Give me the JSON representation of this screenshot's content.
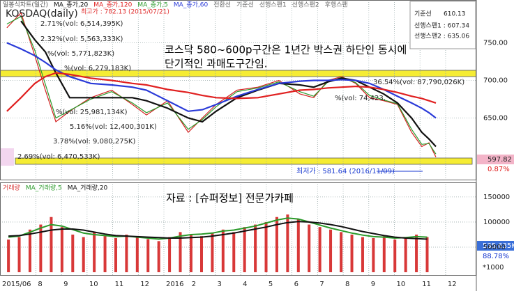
{
  "chart_data": [
    {
      "type": "line",
      "title": "KOSDAQ(daily)",
      "subtitle": "일봉식차트(일간)",
      "xlim": [
        0.6,
        19.2
      ],
      "ylim": [
        568,
        807
      ],
      "yticks": [
        {
          "value": 650,
          "label": "650.00"
        },
        {
          "value": 700,
          "label": "700.00"
        },
        {
          "value": 750,
          "label": "750.00"
        }
      ],
      "grid": true,
      "x": [
        0.87,
        1.42,
        1.96,
        2.37,
        2.78,
        3.32,
        4.14,
        4.96,
        5.77,
        6.32,
        7.14,
        7.95,
        8.5,
        9.04,
        9.86,
        10.67,
        11.49,
        12.31,
        12.85,
        13.4,
        13.94,
        14.49,
        15.03,
        15.58,
        16.12,
        16.67,
        17.07,
        17.35,
        17.62
      ],
      "values": [
        770,
        790,
        733,
        687,
        645,
        659,
        677,
        687,
        668,
        654,
        673,
        631,
        650,
        668,
        687,
        691,
        700,
        682,
        677,
        700,
        705,
        696,
        677,
        673,
        668,
        631,
        612,
        617,
        598
      ],
      "color": "#d42020",
      "series": [
        {
          "name": "MA_종가,20",
          "color": "#111111",
          "values": [
            null,
            779,
            754,
            738,
            710,
            677,
            677,
            677,
            677,
            673,
            663,
            650,
            645,
            659,
            677,
            687,
            696,
            694,
            691,
            698,
            703,
            700,
            691,
            682,
            670,
            650,
            631,
            622,
            612
          ]
        },
        {
          "name": "MA_종가,120",
          "color": "#e02020",
          "values": [
            659,
            677,
            696,
            705,
            710,
            708,
            703,
            700,
            696,
            694,
            688,
            684,
            680,
            677,
            676,
            677,
            682,
            687,
            688,
            690,
            691,
            692,
            691,
            688,
            684,
            679,
            676,
            673,
            670
          ]
        },
        {
          "name": "MA_종가,5",
          "color": "#2a9a2a",
          "values": [
            775,
            785,
            740,
            695,
            650,
            660,
            675,
            685,
            670,
            657,
            670,
            635,
            648,
            665,
            685,
            690,
            698,
            685,
            679,
            698,
            704,
            697,
            680,
            674,
            669,
            635,
            615,
            616,
            602
          ]
        },
        {
          "name": "MA_종가,60",
          "color": "#2a3ad8",
          "values": [
            750,
            742,
            733,
            724,
            714,
            705,
            696,
            694,
            691,
            687,
            673,
            659,
            661,
            668,
            679,
            688,
            696,
            699,
            700,
            700,
            701,
            700,
            696,
            688,
            679,
            670,
            663,
            657,
            650
          ]
        }
      ],
      "indicator_labels": [
        "전환선",
        "기준선",
        "선행스팬1",
        "선행스팬2",
        "후행스팬"
      ],
      "annotations": [
        "최고가 : 782.13 (2015/07/21)",
        "2.71%(vol: 6,514,395K)",
        "2.32%(vol: 5,563,333K)",
        "%(vol: 5,771,823K)",
        "%(vol: 6,279,183K)",
        "%(vol: 25,981,134K)",
        "5.16%(vol: 12,400,301K)",
        "3.78%(vol: 9,080,275K)",
        "2.69%(vol: 6,470,533K)",
        "36.54%(vol: 87,790,026K)",
        "%(vol: 74,423,",
        "최저가 : 581.64 (2016/11/09)",
        "코스닥 580~600p구간은 1년간 박스권 하단인 동시에",
        "단기적인 과매도구간임."
      ],
      "info_box": [
        "기준선",
        "610.13",
        "선행스팬1 : 607.34",
        "선행스팬2 : 635.06"
      ],
      "side_labels": [
        "597.82",
        "0.87%"
      ]
    },
    {
      "type": "bar",
      "xlim": [
        0.6,
        19.2
      ],
      "ylim": [
        -5500,
        179000
      ],
      "yticks": [
        50000,
        100000,
        150000
      ],
      "xticks": [
        {
          "value": 0.6,
          "label": "2015/06"
        },
        {
          "value": 2,
          "label": "8"
        },
        {
          "value": 3,
          "label": "9"
        },
        {
          "value": 4,
          "label": "10"
        },
        {
          "value": 5,
          "label": "11"
        },
        {
          "value": 6,
          "label": "12"
        },
        {
          "value": 7,
          "label": "2016"
        },
        {
          "value": 8,
          "label": "2"
        },
        {
          "value": 9,
          "label": "3"
        },
        {
          "value": 10,
          "label": "4"
        },
        {
          "value": 11,
          "label": "5"
        },
        {
          "value": 12,
          "label": "6"
        },
        {
          "value": 13,
          "label": "7"
        },
        {
          "value": 14,
          "label": "8"
        },
        {
          "value": 15,
          "label": "9"
        },
        {
          "value": 16,
          "label": "10"
        },
        {
          "value": 17,
          "label": "11"
        },
        {
          "value": 18,
          "label": "12"
        }
      ],
      "grid": true,
      "x": [
        0.93,
        1.35,
        1.77,
        2.19,
        2.6,
        3.02,
        3.44,
        3.86,
        4.28,
        4.7,
        5.12,
        5.54,
        5.96,
        6.38,
        6.8,
        7.22,
        7.64,
        8.06,
        8.47,
        8.89,
        9.31,
        9.73,
        10.15,
        10.57,
        10.99,
        11.41,
        11.83,
        12.25,
        12.67,
        13.09,
        13.51,
        13.92,
        14.34,
        14.76,
        15.18,
        15.6,
        16.02,
        16.44,
        16.86,
        17.28
      ],
      "series": [
        {
          "name": "거래량",
          "mark": "bar",
          "color": "#d83838",
          "values": [
            65000,
            70000,
            85000,
            95000,
            110000,
            90000,
            75000,
            70000,
            80000,
            72000,
            68000,
            75000,
            70000,
            66000,
            62000,
            70000,
            80000,
            75000,
            72000,
            78000,
            85000,
            80000,
            90000,
            95000,
            100000,
            110000,
            115000,
            105000,
            95000,
            90000,
            85000,
            80000,
            75000,
            70000,
            68000,
            72000,
            65000,
            70000,
            75000,
            70000
          ]
        },
        {
          "name": "MA_거래량,5",
          "mark": "line",
          "color": "#2a9a2a",
          "values": [
            70000,
            72000,
            80000,
            88000,
            95000,
            92000,
            85000,
            78000,
            75000,
            73000,
            71000,
            72000,
            70000,
            68000,
            66000,
            68000,
            72000,
            75000,
            76000,
            78000,
            82000,
            84000,
            88000,
            92000,
            98000,
            104000,
            108000,
            106000,
            100000,
            94000,
            88000,
            83000,
            78000,
            74000,
            71000,
            70000,
            68000,
            69000,
            71000,
            70000
          ]
        },
        {
          "name": "MA_거래량,20",
          "mark": "line",
          "color": "#111111",
          "values": [
            72000,
            73000,
            76000,
            80000,
            84000,
            86000,
            86000,
            84000,
            80000,
            76000,
            73000,
            72000,
            71000,
            70000,
            69000,
            68000,
            68000,
            69000,
            70000,
            72000,
            75000,
            78000,
            82000,
            86000,
            90000,
            95000,
            99000,
            101000,
            100000,
            98000,
            95000,
            91000,
            86000,
            81000,
            77000,
            73000,
            70000,
            68000,
            67000,
            66000
          ]
        }
      ],
      "annotations": [
        "자료 : [슈퍼정보] 전문가카페"
      ],
      "side_labels": [
        "535,635K",
        "88.78%",
        "*1000"
      ]
    }
  ]
}
